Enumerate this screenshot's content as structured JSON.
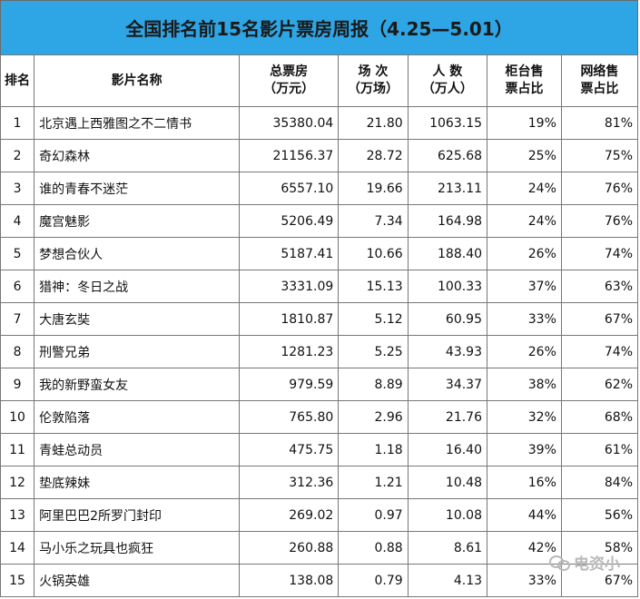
{
  "title": "全国排名前15名影片票房周报（4.25—5.01）",
  "headers": {
    "rank": "排名",
    "name": "影片名称",
    "box": "总票房\n（万元）",
    "shows": "场  次\n（万场）",
    "people": "人  数\n（万人）",
    "counter": "柜台售\n票占比",
    "online": "网络售\n票占比"
  },
  "rows": [
    {
      "rank": "1",
      "name": "北京遇上西雅图之不二情书",
      "box": "35380.04",
      "shows": "21.80",
      "people": "1063.15",
      "counter": "19%",
      "online": "81%"
    },
    {
      "rank": "2",
      "name": "奇幻森林",
      "box": "21156.37",
      "shows": "28.72",
      "people": "625.68",
      "counter": "25%",
      "online": "75%"
    },
    {
      "rank": "3",
      "name": "谁的青春不迷茫",
      "box": "6557.10",
      "shows": "19.66",
      "people": "213.11",
      "counter": "24%",
      "online": "76%"
    },
    {
      "rank": "4",
      "name": "魔宫魅影",
      "box": "5206.49",
      "shows": "7.34",
      "people": "164.98",
      "counter": "24%",
      "online": "76%"
    },
    {
      "rank": "5",
      "name": "梦想合伙人",
      "box": "5187.41",
      "shows": "10.66",
      "people": "188.40",
      "counter": "26%",
      "online": "74%"
    },
    {
      "rank": "6",
      "name": "猎神：冬日之战",
      "box": "3331.09",
      "shows": "15.13",
      "people": "100.33",
      "counter": "37%",
      "online": "63%"
    },
    {
      "rank": "7",
      "name": "大唐玄奘",
      "box": "1810.87",
      "shows": "5.12",
      "people": "60.95",
      "counter": "33%",
      "online": "67%"
    },
    {
      "rank": "8",
      "name": "刑警兄弟",
      "box": "1281.23",
      "shows": "5.25",
      "people": "43.93",
      "counter": "26%",
      "online": "74%"
    },
    {
      "rank": "9",
      "name": "我的新野蛮女友",
      "box": "979.59",
      "shows": "8.89",
      "people": "34.37",
      "counter": "38%",
      "online": "62%"
    },
    {
      "rank": "10",
      "name": "伦敦陷落",
      "box": "765.80",
      "shows": "2.96",
      "people": "21.76",
      "counter": "32%",
      "online": "68%"
    },
    {
      "rank": "11",
      "name": "青蛙总动员",
      "box": "475.75",
      "shows": "1.18",
      "people": "16.40",
      "counter": "39%",
      "online": "61%"
    },
    {
      "rank": "12",
      "name": "垫底辣妹",
      "box": "312.36",
      "shows": "1.21",
      "people": "10.48",
      "counter": "16%",
      "online": "84%"
    },
    {
      "rank": "13",
      "name": "阿里巴巴2所罗门封印",
      "box": "269.02",
      "shows": "0.97",
      "people": "10.08",
      "counter": "44%",
      "online": "56%"
    },
    {
      "rank": "14",
      "name": "马小乐之玩具也疯狂",
      "box": "260.88",
      "shows": "0.88",
      "people": "8.61",
      "counter": "42%",
      "online": "58%"
    },
    {
      "rank": "15",
      "name": "火锅英雄",
      "box": "138.08",
      "shows": "0.79",
      "people": "4.13",
      "counter": "33%",
      "online": "67%"
    }
  ],
  "watermark": {
    "text": "电资小",
    "icon": "wechat-icon"
  }
}
